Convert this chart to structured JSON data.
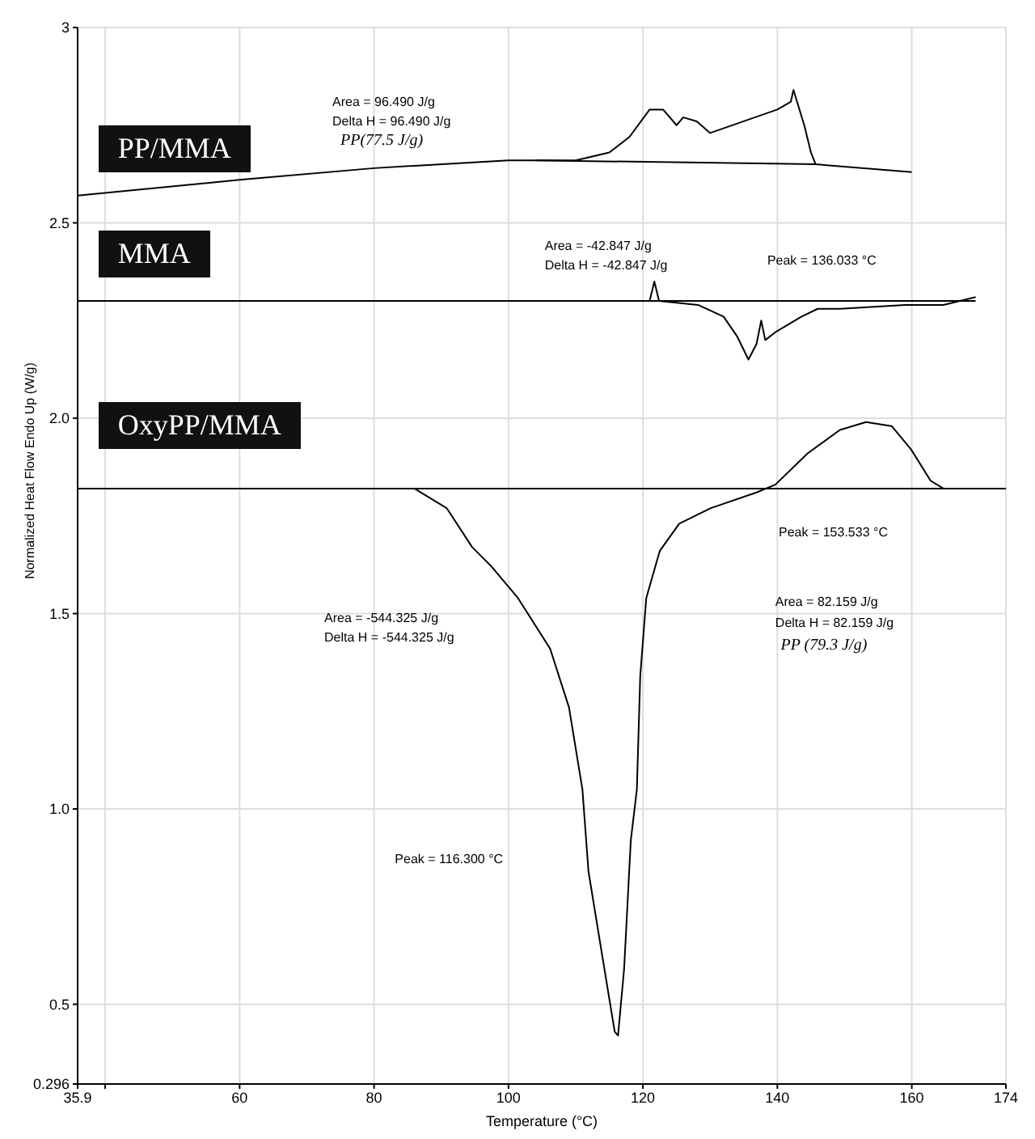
{
  "chart_data": {
    "type": "line",
    "xlabel": "Temperature (°C)",
    "ylabel": "Normalized Heat Flow Endo Up (W/g)",
    "xlim": [
      35.9,
      174
    ],
    "xticks": [
      35.9,
      {
        "value": 40,
        "label": null
      },
      60,
      80,
      100,
      120,
      140,
      160,
      174
    ],
    "ylim": [
      0.296,
      3
    ],
    "yticks": [
      0.296,
      0.5,
      {
        "value": 1,
        "label": "1.0"
      },
      1.5,
      {
        "value": 2,
        "label": "2.0"
      },
      2.5,
      3
    ],
    "grid": true,
    "legend": "left",
    "marker": "none",
    "line_style": "solid",
    "series": [
      {
        "name": "PP/MMA",
        "color": "#000000",
        "x": [
          35.9,
          60,
          80,
          100,
          104,
          110,
          115,
          118,
          121,
          123,
          125,
          126,
          128,
          130,
          135,
          140,
          142,
          142.4,
          144,
          145,
          145.7,
          160
        ],
        "values": [
          2.57,
          2.61,
          2.64,
          2.66,
          2.66,
          2.66,
          2.68,
          2.72,
          2.79,
          2.79,
          2.75,
          2.77,
          2.76,
          2.73,
          2.76,
          2.79,
          2.81,
          2.84,
          2.75,
          2.68,
          2.65,
          2.63
        ]
      },
      {
        "color": "#000000",
        "x": [
          104,
          145.7
        ],
        "values": [
          2.66,
          2.65
        ]
      },
      {
        "name": "MMA",
        "color": "#000000",
        "x": [
          35.9,
          80,
          121,
          121.7,
          122.4,
          128.2,
          132,
          134,
          135.7,
          136.9,
          137.6,
          138.2,
          139.7,
          143.6,
          146,
          149.3,
          159,
          164.7,
          169.5
        ],
        "values": [
          2.3,
          2.3,
          2.3,
          2.35,
          2.3,
          2.29,
          2.26,
          2.21,
          2.15,
          2.19,
          2.25,
          2.2,
          2.22,
          2.26,
          2.28,
          2.28,
          2.29,
          2.29,
          2.31
        ]
      },
      {
        "color": "#000000",
        "x": [
          104,
          169.5
        ],
        "values": [
          2.3,
          2.3
        ]
      },
      {
        "name": "OxyPP/MMA",
        "color": "#000000",
        "x": [
          35.9,
          86,
          90.8,
          94.6,
          97.5,
          101.4,
          106.2,
          109,
          111,
          111.9,
          113.8,
          115.8,
          116.3,
          117.2,
          118.2,
          119.1,
          119.6,
          120.5,
          122.5,
          125.4,
          130.1,
          136.9,
          139.7,
          144.5,
          149.3,
          153.2,
          157,
          159.9,
          162.8,
          164.7,
          174
        ],
        "values": [
          1.82,
          1.82,
          1.77,
          1.67,
          1.62,
          1.54,
          1.41,
          1.26,
          1.05,
          0.84,
          0.64,
          0.43,
          0.42,
          0.59,
          0.92,
          1.05,
          1.34,
          1.54,
          1.66,
          1.73,
          1.77,
          1.81,
          1.83,
          1.91,
          1.97,
          1.99,
          1.98,
          1.92,
          1.84,
          1.82,
          1.82
        ]
      },
      {
        "color": "#000000",
        "x": [
          70,
          174
        ],
        "values": [
          1.82,
          1.82
        ]
      }
    ],
    "annotations": [
      "Area = 96.490 J/g",
      "Delta H = 96.490 J/g",
      "PP(77.5 J/g)",
      "Area = -42.847 J/g",
      "Delta H = -42.847 J/g",
      "Peak = 136.033 °C",
      "Peak = 153.533 °C",
      "Area = -544.325 J/g",
      "Delta H = -544.325 J/g",
      "Area = 82.159 J/g",
      "Delta H = 82.159 J/g",
      "PP (79.3 J/g)",
      "Peak = 116.300 °C"
    ]
  }
}
